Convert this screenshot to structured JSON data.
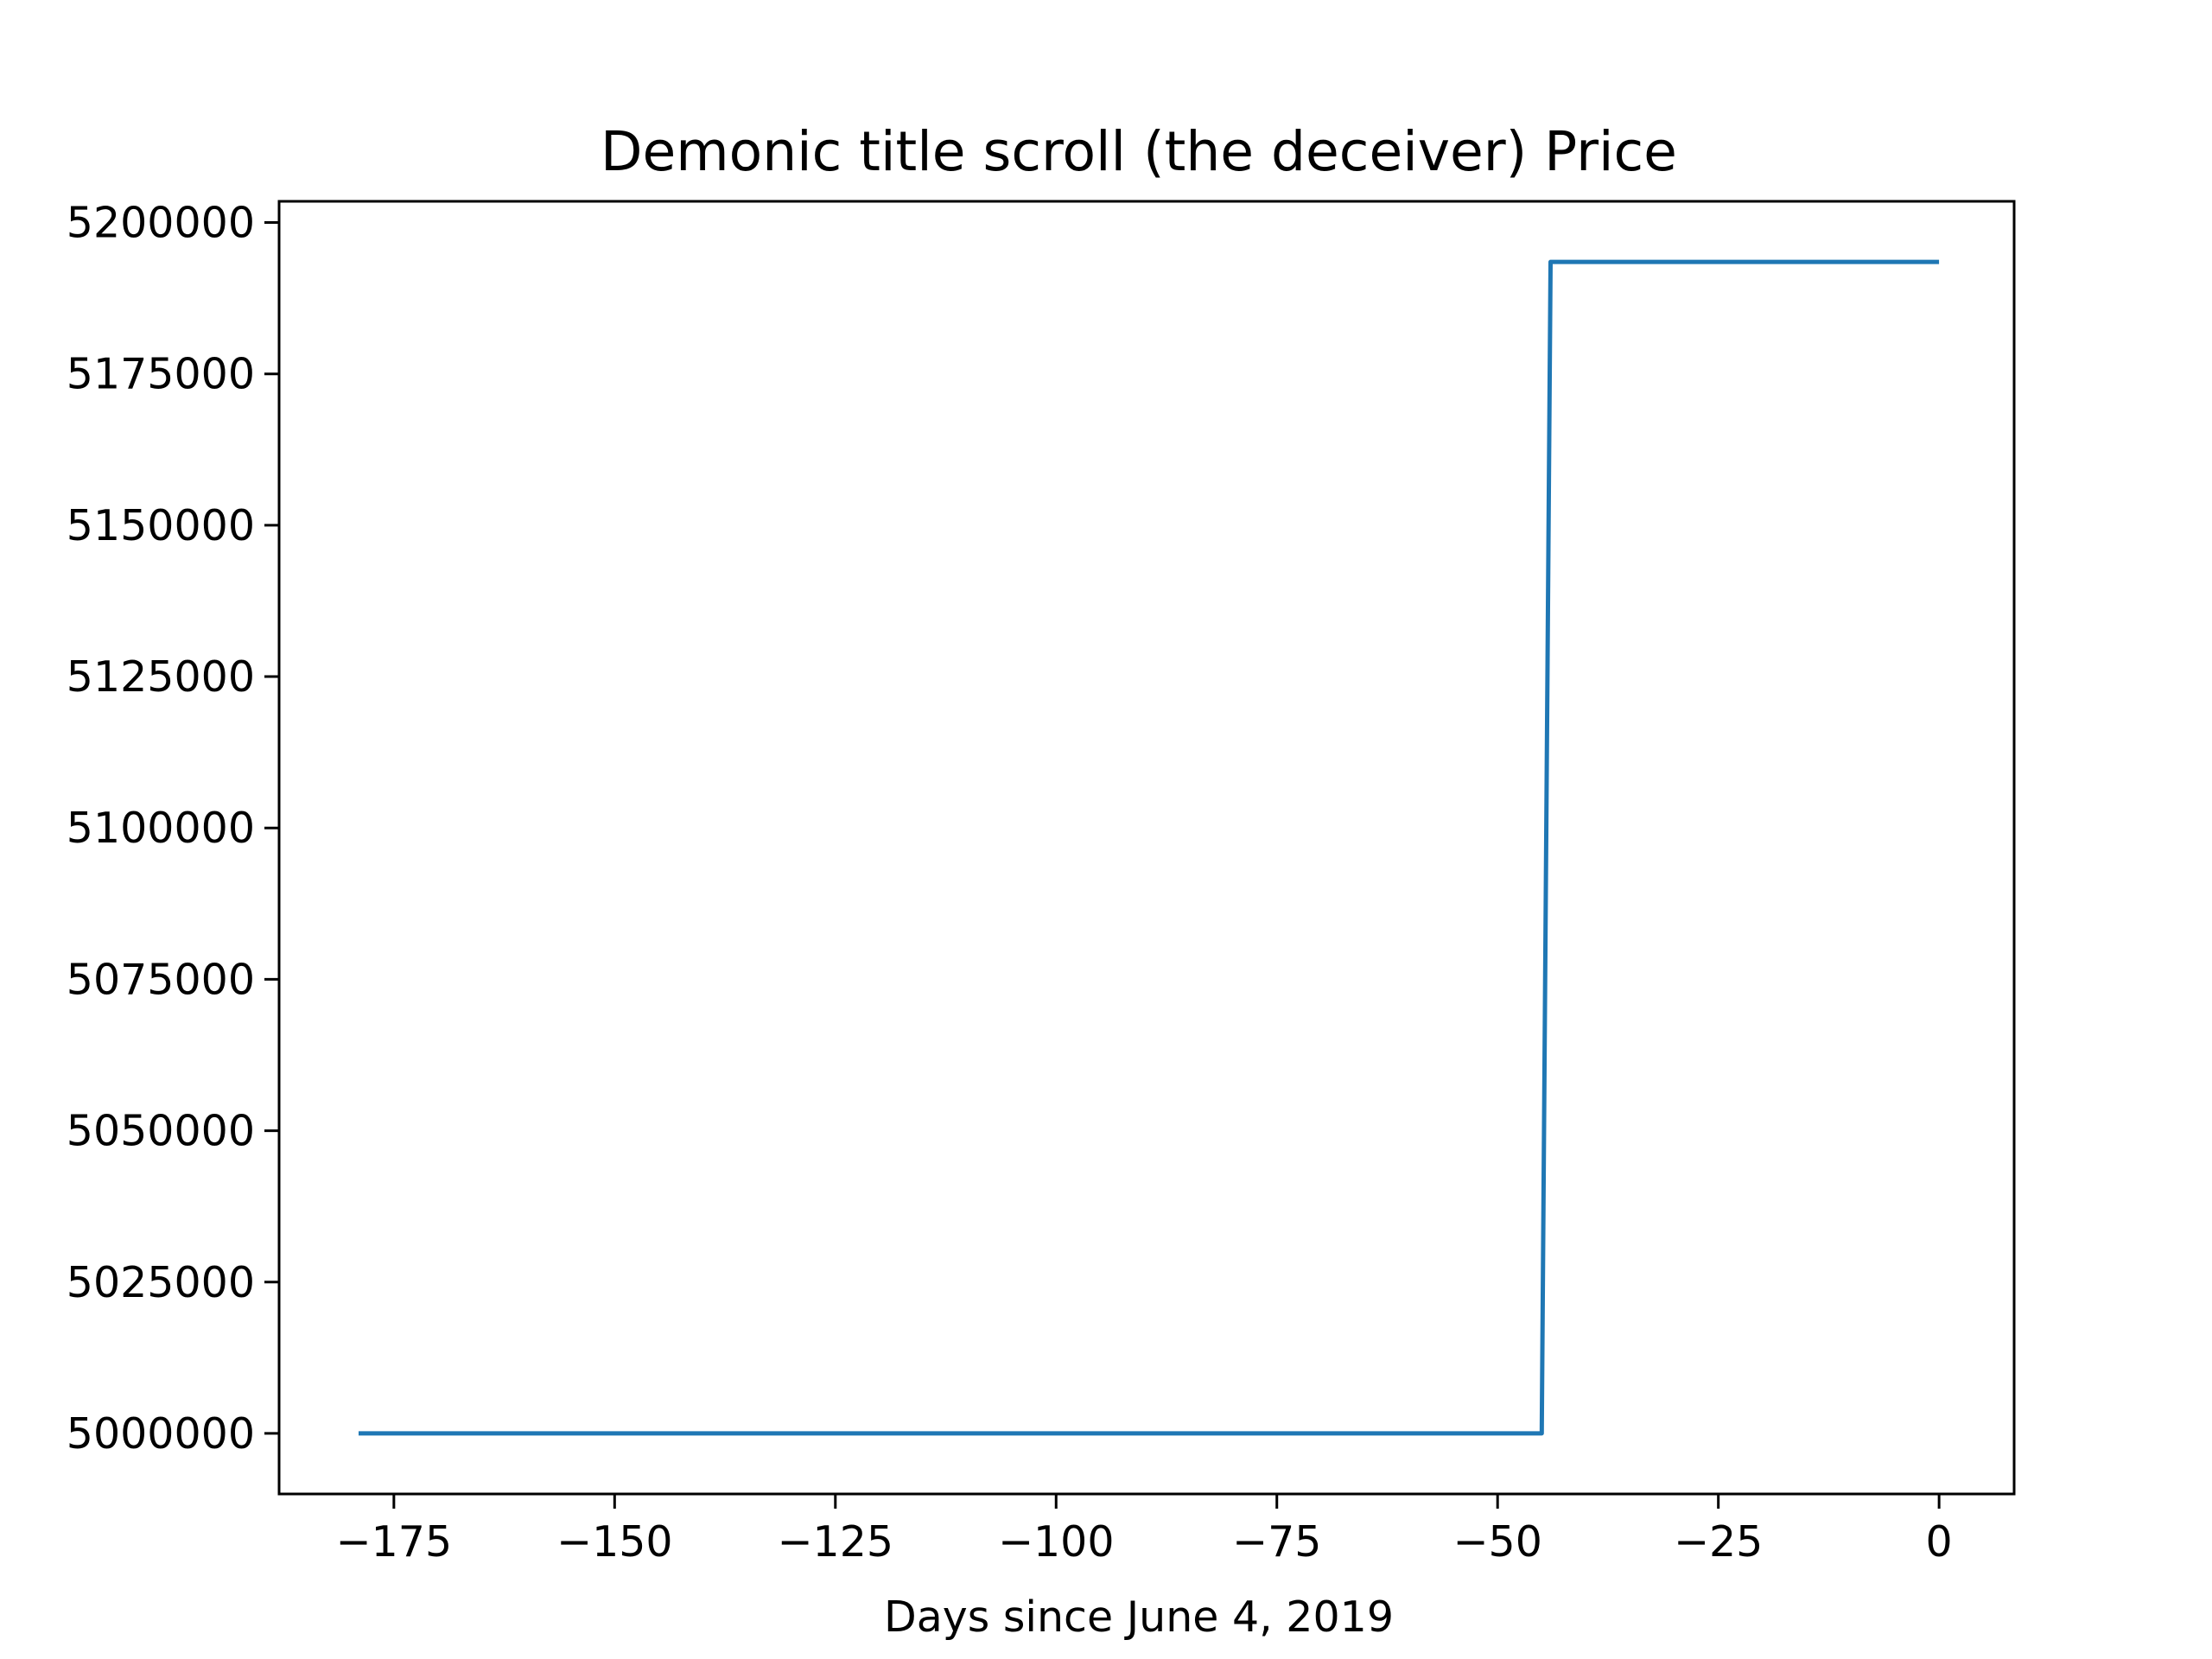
{
  "chart_data": {
    "type": "line",
    "title": "Demonic title scroll (the deceiver) Price",
    "xlabel": "Days since June 4, 2019",
    "ylabel": "",
    "xlim": [
      -188,
      8.5
    ],
    "ylim": [
      4990000,
      5203500
    ],
    "x_ticks": [
      -175,
      -150,
      -125,
      -100,
      -75,
      -50,
      -25,
      0
    ],
    "x_tick_labels": [
      "−175",
      "−150",
      "−125",
      "−100",
      "−75",
      "−50",
      "−25",
      "0"
    ],
    "y_ticks": [
      5000000,
      5025000,
      5050000,
      5075000,
      5100000,
      5125000,
      5150000,
      5175000,
      5200000
    ],
    "y_tick_labels": [
      "5000000",
      "5025000",
      "5050000",
      "5075000",
      "5100000",
      "5125000",
      "5150000",
      "5175000",
      "5200000"
    ],
    "grid": false,
    "legend": "none",
    "series": [
      {
        "color": "#1f77b4",
        "points": [
          [
            -179,
            5000000
          ],
          [
            -45,
            5000000
          ],
          [
            -44,
            5193500
          ],
          [
            0,
            5193500
          ]
        ]
      }
    ]
  }
}
